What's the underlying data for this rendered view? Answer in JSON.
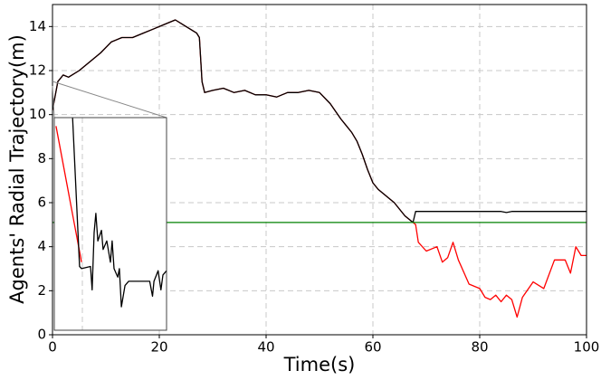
{
  "chart_data": [
    {
      "type": "line",
      "xlabel": "Time(s)",
      "ylabel": "Agents' Radial Trajectory(m)",
      "xlim": [
        0,
        100
      ],
      "ylim": [
        0,
        15
      ],
      "xticks": [
        0,
        20,
        40,
        60,
        80,
        100
      ],
      "yticks": [
        0,
        2,
        4,
        6,
        8,
        10,
        12,
        14
      ],
      "grid": true,
      "series": [
        {
          "color": "#ff0000",
          "x": [
            0,
            1,
            2,
            3,
            5,
            7,
            9,
            11,
            13,
            15,
            17,
            19,
            21,
            23,
            25,
            27,
            27.5,
            28,
            28.5,
            30,
            32,
            34,
            36,
            38,
            40,
            42,
            44,
            46,
            48,
            50,
            52,
            54,
            56,
            57,
            58,
            59,
            60,
            61,
            62,
            64,
            66,
            67.5,
            68,
            68.5,
            70,
            72,
            73,
            74,
            75,
            76,
            78,
            80,
            81,
            82,
            83,
            84,
            85,
            86,
            87,
            88,
            90,
            92,
            94,
            96,
            97,
            98,
            99,
            100
          ],
          "values": [
            10.2,
            11.5,
            11.8,
            11.7,
            12.0,
            12.4,
            12.8,
            13.3,
            13.5,
            13.5,
            13.7,
            13.9,
            14.1,
            14.3,
            14.0,
            13.7,
            13.5,
            11.5,
            11.0,
            11.1,
            11.2,
            11.0,
            11.1,
            10.9,
            10.9,
            10.8,
            11.0,
            11.0,
            11.1,
            11.0,
            10.5,
            9.8,
            9.2,
            8.8,
            8.2,
            7.5,
            6.9,
            6.6,
            6.4,
            6.0,
            5.4,
            5.1,
            5.0,
            4.2,
            3.8,
            4.0,
            3.3,
            3.5,
            4.2,
            3.4,
            2.3,
            2.1,
            1.7,
            1.6,
            1.8,
            1.5,
            1.8,
            1.6,
            0.8,
            1.7,
            2.4,
            2.1,
            3.4,
            3.4,
            2.8,
            4.0,
            3.6,
            3.6
          ]
        },
        {
          "color": "#000000",
          "x": [
            0,
            1,
            2,
            3,
            5,
            7,
            9,
            11,
            13,
            15,
            17,
            19,
            21,
            23,
            25,
            27,
            27.5,
            28,
            28.5,
            30,
            32,
            34,
            36,
            38,
            40,
            42,
            44,
            46,
            48,
            50,
            52,
            54,
            56,
            57,
            58,
            59,
            60,
            61,
            62,
            64,
            66,
            67.5,
            68,
            70,
            84,
            85,
            86,
            100
          ],
          "values": [
            10.2,
            11.5,
            11.8,
            11.7,
            12.0,
            12.4,
            12.8,
            13.3,
            13.5,
            13.5,
            13.7,
            13.9,
            14.1,
            14.3,
            14.0,
            13.7,
            13.5,
            11.5,
            11.0,
            11.1,
            11.2,
            11.0,
            11.1,
            10.9,
            10.9,
            10.8,
            11.0,
            11.0,
            11.1,
            11.0,
            10.5,
            9.8,
            9.2,
            8.8,
            8.2,
            7.5,
            6.9,
            6.6,
            6.4,
            6.0,
            5.4,
            5.1,
            5.6,
            5.6,
            5.6,
            5.55,
            5.6,
            5.6
          ]
        },
        {
          "color": "#008000",
          "x": [
            0,
            100
          ],
          "values": [
            5.1,
            5.1
          ]
        }
      ]
    },
    {
      "type": "line",
      "xlim": [
        0,
        40
      ],
      "ylim": [
        0,
        10
      ],
      "xticks": [
        10
      ],
      "grid": true,
      "series": [
        {
          "color": "#ff0000",
          "x": [
            0.6,
            9.7
          ],
          "values": [
            9.6,
            3.2
          ]
        },
        {
          "color": "#000000",
          "x": [
            6.5,
            9.0,
            9.7,
            12.9,
            13.5,
            14.2,
            14.8,
            15.5,
            16.8,
            17.4,
            18.7,
            20,
            20.6,
            21.3,
            22.6,
            23.2,
            23.9,
            25.2,
            26.5,
            29,
            34,
            35,
            35.5,
            37,
            38,
            38.7,
            40
          ],
          "values": [
            10,
            3.0,
            2.9,
            3.0,
            1.9,
            4.6,
            5.5,
            4.2,
            4.7,
            3.8,
            4.2,
            3.2,
            4.2,
            2.9,
            2.5,
            2.9,
            1.1,
            2.1,
            2.3,
            2.3,
            2.3,
            1.6,
            2.3,
            2.8,
            1.9,
            2.6,
            2.8
          ]
        }
      ]
    }
  ]
}
